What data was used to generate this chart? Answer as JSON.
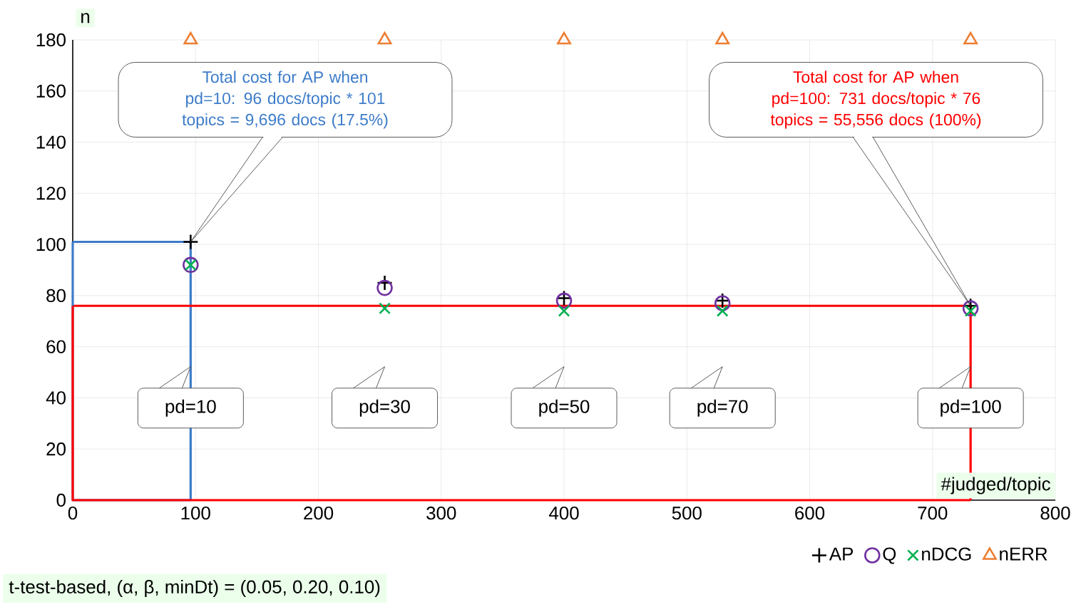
{
  "chart_data": {
    "type": "scatter",
    "xlabel": "#judged/topic",
    "ylabel": "n",
    "xlim": [
      0,
      800
    ],
    "ylim": [
      0,
      180
    ],
    "xticks": [
      0,
      100,
      200,
      300,
      400,
      500,
      600,
      700,
      800
    ],
    "yticks": [
      0,
      20,
      40,
      60,
      80,
      100,
      120,
      140,
      160,
      180
    ],
    "grid": true,
    "legend": "bottom right",
    "series": [
      {
        "type": "step",
        "color": "#3d7cc9",
        "marker": "none",
        "line_style": "solid",
        "x": [
          0,
          96
        ],
        "values": [
          101,
          0
        ]
      },
      {
        "type": "step",
        "color": "#ff0000",
        "marker": "none",
        "line_style": "solid",
        "x": [
          0,
          731
        ],
        "values": [
          76,
          0
        ]
      },
      {
        "name": "AP",
        "color": "#000000",
        "marker": "plus",
        "x": [
          96,
          254,
          400,
          529,
          731
        ],
        "values": [
          101,
          85,
          79,
          78,
          76
        ]
      },
      {
        "name": "Q",
        "color": "#7030a0",
        "marker": "circle",
        "x": [
          96,
          254,
          400,
          529,
          731
        ],
        "values": [
          92,
          83,
          78,
          77,
          75
        ]
      },
      {
        "name": "nDCG",
        "color": "#00b050",
        "marker": "cross",
        "x": [
          96,
          254,
          400,
          529,
          731
        ],
        "values": [
          92,
          75,
          74,
          74,
          74
        ]
      },
      {
        "name": "nERR",
        "color": "#ed7d31",
        "marker": "triangle",
        "x": [
          96,
          254,
          400,
          529,
          731
        ],
        "values": [
          180,
          180,
          180,
          180,
          180
        ]
      }
    ],
    "annotations": [
      "Total cost for AP when pd=10: 96 docs/topic * 101 topics = 9,696 docs (17.5%)",
      "Total cost for AP when pd=100: 731 docs/topic * 76 topics = 55,556 docs (100%)",
      "pd=10",
      "pd=30",
      "pd=50",
      "pd=70",
      "pd=100",
      "t-test-based, (α, β, minDt) = (0.05, 0.20, 0.10)"
    ]
  }
}
